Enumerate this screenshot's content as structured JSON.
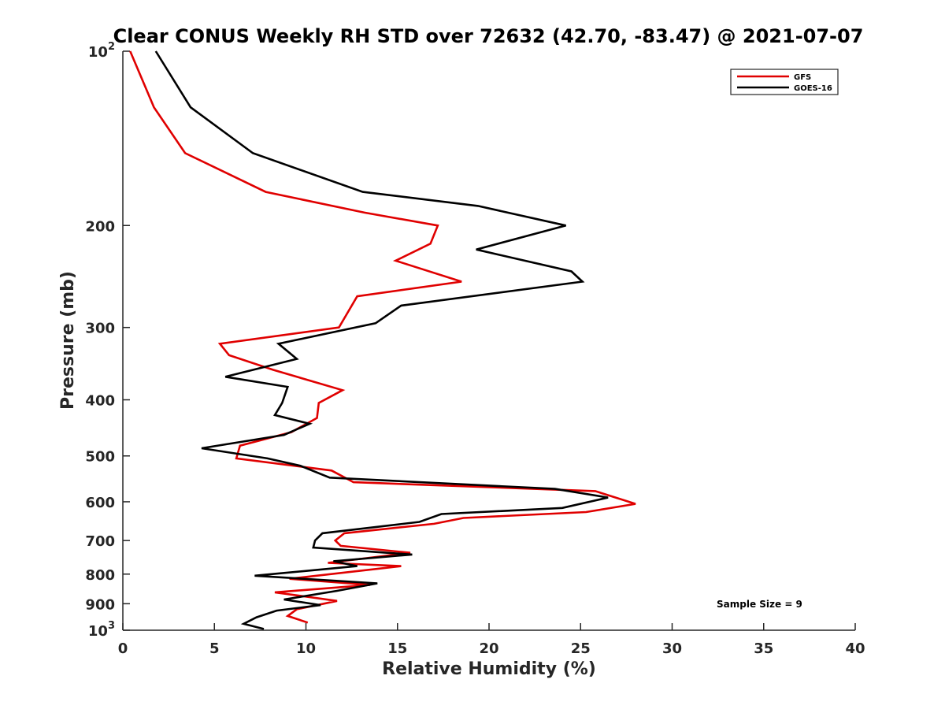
{
  "chart_data": {
    "type": "line",
    "title": "Clear CONUS Weekly RH STD over 72632 (42.70, -83.47) @ 2021-07-07",
    "xlabel": "Relative Humidity (%)",
    "ylabel": "Pressure (mb)",
    "xlim": [
      0,
      40
    ],
    "ylim": [
      100,
      1000
    ],
    "y_scale": "log",
    "y_reversed": true,
    "x_ticks": [
      "0",
      "5",
      "10",
      "15",
      "20",
      "25",
      "30",
      "35",
      "40"
    ],
    "y_ticks": [
      {
        "value": 100,
        "label": "10",
        "sup": "2"
      },
      {
        "value": 200,
        "label": "200",
        "sup": ""
      },
      {
        "value": 300,
        "label": "300",
        "sup": ""
      },
      {
        "value": 400,
        "label": "400",
        "sup": ""
      },
      {
        "value": 500,
        "label": "500",
        "sup": ""
      },
      {
        "value": 600,
        "label": "600",
        "sup": ""
      },
      {
        "value": 700,
        "label": "700",
        "sup": ""
      },
      {
        "value": 800,
        "label": "800",
        "sup": ""
      },
      {
        "value": 900,
        "label": "900",
        "sup": ""
      },
      {
        "value": 1000,
        "label": "10",
        "sup": "3"
      }
    ],
    "grid": false,
    "legend_position": "top-right",
    "annotation": "Sample Size = 9",
    "series": [
      {
        "name": "GFS",
        "color": "#e00000",
        "points": [
          [
            0.4,
            100
          ],
          [
            1.7,
            125
          ],
          [
            3.4,
            150
          ],
          [
            7.8,
            175
          ],
          [
            13.2,
            190
          ],
          [
            17.2,
            200
          ],
          [
            16.8,
            215
          ],
          [
            14.9,
            230
          ],
          [
            18.5,
            250
          ],
          [
            12.8,
            265
          ],
          [
            11.8,
            300
          ],
          [
            5.3,
            320
          ],
          [
            5.8,
            335
          ],
          [
            8.2,
            355
          ],
          [
            12.0,
            385
          ],
          [
            10.7,
            405
          ],
          [
            10.6,
            430
          ],
          [
            9.2,
            455
          ],
          [
            6.4,
            480
          ],
          [
            6.2,
            505
          ],
          [
            11.4,
            530
          ],
          [
            12.6,
            555
          ],
          [
            25.8,
            575
          ],
          [
            28.0,
            605
          ],
          [
            25.3,
            625
          ],
          [
            18.6,
            640
          ],
          [
            17.0,
            655
          ],
          [
            12.1,
            680
          ],
          [
            11.6,
            700
          ],
          [
            11.9,
            715
          ],
          [
            15.7,
            735
          ],
          [
            11.2,
            765
          ],
          [
            15.2,
            775
          ],
          [
            9.1,
            815
          ],
          [
            13.5,
            835
          ],
          [
            8.3,
            860
          ],
          [
            11.7,
            890
          ],
          [
            9.5,
            920
          ],
          [
            9.0,
            945
          ],
          [
            10.1,
            970
          ]
        ]
      },
      {
        "name": "GOES-16",
        "color": "#000000",
        "points": [
          [
            1.8,
            100
          ],
          [
            3.7,
            125
          ],
          [
            7.1,
            150
          ],
          [
            13.1,
            175
          ],
          [
            19.4,
            185
          ],
          [
            24.2,
            200
          ],
          [
            19.3,
            220
          ],
          [
            24.5,
            240
          ],
          [
            25.1,
            250
          ],
          [
            15.2,
            275
          ],
          [
            13.8,
            295
          ],
          [
            8.5,
            320
          ],
          [
            9.5,
            340
          ],
          [
            5.6,
            365
          ],
          [
            9.0,
            380
          ],
          [
            8.7,
            405
          ],
          [
            8.3,
            425
          ],
          [
            10.2,
            440
          ],
          [
            8.8,
            460
          ],
          [
            4.3,
            485
          ],
          [
            7.9,
            505
          ],
          [
            9.7,
            520
          ],
          [
            11.3,
            545
          ],
          [
            23.6,
            570
          ],
          [
            26.5,
            590
          ],
          [
            24.0,
            615
          ],
          [
            17.4,
            630
          ],
          [
            16.2,
            650
          ],
          [
            10.9,
            680
          ],
          [
            10.5,
            700
          ],
          [
            10.4,
            720
          ],
          [
            15.8,
            740
          ],
          [
            11.5,
            760
          ],
          [
            12.8,
            775
          ],
          [
            7.2,
            805
          ],
          [
            13.9,
            830
          ],
          [
            11.7,
            855
          ],
          [
            8.8,
            885
          ],
          [
            10.8,
            905
          ],
          [
            8.4,
            925
          ],
          [
            7.3,
            950
          ],
          [
            6.6,
            975
          ],
          [
            7.7,
            995
          ]
        ]
      }
    ]
  }
}
